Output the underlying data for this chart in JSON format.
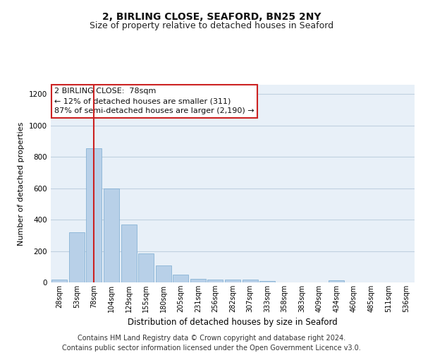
{
  "title_line1": "2, BIRLING CLOSE, SEAFORD, BN25 2NY",
  "title_line2": "Size of property relative to detached houses in Seaford",
  "xlabel": "Distribution of detached houses by size in Seaford",
  "ylabel": "Number of detached properties",
  "categories": [
    "28sqm",
    "53sqm",
    "78sqm",
    "104sqm",
    "129sqm",
    "155sqm",
    "180sqm",
    "205sqm",
    "231sqm",
    "256sqm",
    "282sqm",
    "307sqm",
    "333sqm",
    "358sqm",
    "383sqm",
    "409sqm",
    "434sqm",
    "460sqm",
    "485sqm",
    "511sqm",
    "536sqm"
  ],
  "values": [
    18,
    318,
    855,
    598,
    370,
    185,
    108,
    48,
    22,
    18,
    18,
    20,
    10,
    0,
    0,
    0,
    12,
    0,
    0,
    0,
    0
  ],
  "bar_color": "#b8d0e8",
  "bar_edge_color": "#7aaad0",
  "highlight_index": 2,
  "highlight_line_color": "#cc2222",
  "annotation_text": "2 BIRLING CLOSE:  78sqm\n← 12% of detached houses are smaller (311)\n87% of semi-detached houses are larger (2,190) →",
  "annotation_box_color": "#ffffff",
  "annotation_box_edge_color": "#cc2222",
  "ylim": [
    0,
    1260
  ],
  "yticks": [
    0,
    200,
    400,
    600,
    800,
    1000,
    1200
  ],
  "grid_color": "#c0d0e0",
  "bg_color": "#e8f0f8",
  "footnote": "Contains HM Land Registry data © Crown copyright and database right 2024.\nContains public sector information licensed under the Open Government Licence v3.0.",
  "title_fontsize": 10,
  "subtitle_fontsize": 9,
  "annotation_fontsize": 8,
  "footnote_fontsize": 7,
  "ylabel_fontsize": 8,
  "xlabel_fontsize": 8.5
}
